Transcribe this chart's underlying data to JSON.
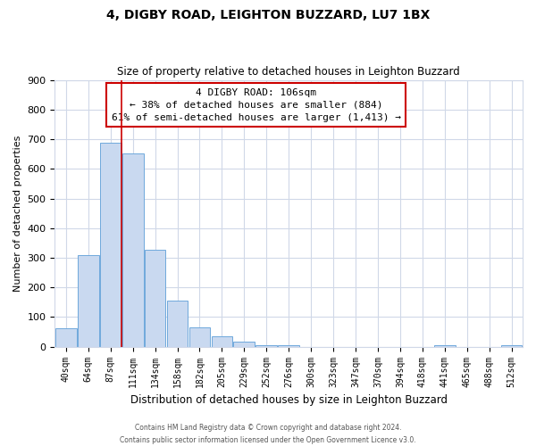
{
  "title": "4, DIGBY ROAD, LEIGHTON BUZZARD, LU7 1BX",
  "subtitle": "Size of property relative to detached houses in Leighton Buzzard",
  "xlabel": "Distribution of detached houses by size in Leighton Buzzard",
  "ylabel": "Number of detached properties",
  "bar_labels": [
    "40sqm",
    "64sqm",
    "87sqm",
    "111sqm",
    "134sqm",
    "158sqm",
    "182sqm",
    "205sqm",
    "229sqm",
    "252sqm",
    "276sqm",
    "300sqm",
    "323sqm",
    "347sqm",
    "370sqm",
    "394sqm",
    "418sqm",
    "441sqm",
    "465sqm",
    "488sqm",
    "512sqm"
  ],
  "bar_values": [
    63,
    310,
    688,
    652,
    328,
    155,
    65,
    35,
    18,
    5,
    5,
    0,
    0,
    0,
    0,
    0,
    0,
    5,
    0,
    0,
    5
  ],
  "bar_color": "#c9d9f0",
  "bar_edge_color": "#6fa8dc",
  "vline_x": 2.5,
  "vline_color": "#cc0000",
  "annotation_title": "4 DIGBY ROAD: 106sqm",
  "annotation_line1": "← 38% of detached houses are smaller (884)",
  "annotation_line2": "61% of semi-detached houses are larger (1,413) →",
  "annotation_box_color": "#ffffff",
  "annotation_box_edge": "#cc0000",
  "ylim": [
    0,
    900
  ],
  "yticks": [
    0,
    100,
    200,
    300,
    400,
    500,
    600,
    700,
    800,
    900
  ],
  "footer1": "Contains HM Land Registry data © Crown copyright and database right 2024.",
  "footer2": "Contains public sector information licensed under the Open Government Licence v3.0.",
  "bg_color": "#ffffff",
  "grid_color": "#d0d8e8",
  "title_fontsize": 10,
  "subtitle_fontsize": 8.5
}
